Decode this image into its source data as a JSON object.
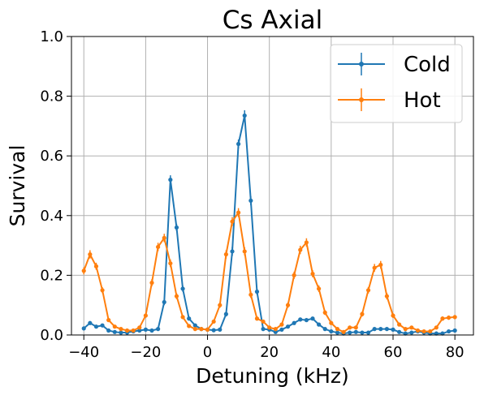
{
  "chart_data": {
    "type": "line",
    "title": "Cs Axial",
    "xlabel": "Detuning (kHz)",
    "ylabel": "Survival",
    "xlim": [
      -44,
      86
    ],
    "ylim": [
      0,
      1.0
    ],
    "xticks": [
      -40,
      -20,
      0,
      20,
      40,
      60,
      80
    ],
    "yticks": [
      0.0,
      0.2,
      0.4,
      0.6,
      0.8,
      1.0
    ],
    "xtick_labels": [
      "−40",
      "−20",
      "0",
      "20",
      "40",
      "60",
      "80"
    ],
    "ytick_labels": [
      "0.0",
      "0.2",
      "0.4",
      "0.6",
      "0.8",
      "1.0"
    ],
    "grid": true,
    "legend_position": "top-right",
    "x": [
      -40,
      -38,
      -36,
      -34,
      -32,
      -30,
      -28,
      -26,
      -24,
      -22,
      -20,
      -18,
      -16,
      -14,
      -12,
      -10,
      -8,
      -6,
      -4,
      -2,
      0,
      2,
      4,
      6,
      8,
      10,
      12,
      14,
      16,
      18,
      20,
      22,
      24,
      26,
      28,
      30,
      32,
      34,
      36,
      38,
      40,
      42,
      44,
      46,
      48,
      50,
      52,
      54,
      56,
      58,
      60,
      62,
      64,
      66,
      68,
      70,
      72,
      74,
      76,
      78,
      80
    ],
    "series": [
      {
        "name": "Cold",
        "color": "#1f77b4",
        "values": [
          0.022,
          0.04,
          0.028,
          0.032,
          0.015,
          0.01,
          0.008,
          0.008,
          0.012,
          0.015,
          0.018,
          0.015,
          0.02,
          0.11,
          0.52,
          0.36,
          0.155,
          0.055,
          0.032,
          0.02,
          0.018,
          0.016,
          0.018,
          0.07,
          0.28,
          0.64,
          0.735,
          0.45,
          0.145,
          0.02,
          0.018,
          0.01,
          0.018,
          0.028,
          0.04,
          0.052,
          0.05,
          0.055,
          0.035,
          0.02,
          0.012,
          0.008,
          0.005,
          0.008,
          0.01,
          0.008,
          0.008,
          0.02,
          0.02,
          0.02,
          0.018,
          0.01,
          0.005,
          0.008,
          0.012,
          0.008,
          0.005,
          0.005,
          0.005,
          0.012,
          0.015
        ],
        "errors": [
          0.004,
          0.005,
          0.004,
          0.004,
          0.003,
          0.003,
          0.003,
          0.003,
          0.003,
          0.003,
          0.003,
          0.003,
          0.004,
          0.01,
          0.015,
          0.012,
          0.01,
          0.006,
          0.004,
          0.003,
          0.003,
          0.003,
          0.003,
          0.008,
          0.015,
          0.015,
          0.018,
          0.015,
          0.01,
          0.003,
          0.003,
          0.003,
          0.003,
          0.004,
          0.005,
          0.005,
          0.005,
          0.005,
          0.004,
          0.003,
          0.003,
          0.003,
          0.002,
          0.003,
          0.003,
          0.003,
          0.003,
          0.003,
          0.003,
          0.003,
          0.003,
          0.003,
          0.002,
          0.003,
          0.003,
          0.003,
          0.002,
          0.002,
          0.002,
          0.003,
          0.003
        ]
      },
      {
        "name": "Hot",
        "color": "#ff7f0e",
        "values": [
          0.215,
          0.27,
          0.23,
          0.15,
          0.05,
          0.028,
          0.02,
          0.015,
          0.015,
          0.025,
          0.065,
          0.175,
          0.295,
          0.325,
          0.24,
          0.13,
          0.06,
          0.03,
          0.02,
          0.02,
          0.018,
          0.045,
          0.1,
          0.27,
          0.38,
          0.41,
          0.28,
          0.135,
          0.055,
          0.045,
          0.025,
          0.02,
          0.035,
          0.1,
          0.2,
          0.285,
          0.31,
          0.205,
          0.155,
          0.075,
          0.04,
          0.02,
          0.01,
          0.025,
          0.025,
          0.07,
          0.15,
          0.225,
          0.235,
          0.13,
          0.065,
          0.035,
          0.02,
          0.025,
          0.015,
          0.012,
          0.012,
          0.025,
          0.055,
          0.058,
          0.06
        ],
        "errors": [
          0.012,
          0.014,
          0.012,
          0.01,
          0.006,
          0.005,
          0.004,
          0.004,
          0.004,
          0.005,
          0.007,
          0.012,
          0.014,
          0.014,
          0.013,
          0.01,
          0.007,
          0.005,
          0.004,
          0.004,
          0.004,
          0.006,
          0.009,
          0.014,
          0.015,
          0.015,
          0.014,
          0.011,
          0.007,
          0.006,
          0.005,
          0.004,
          0.005,
          0.009,
          0.012,
          0.014,
          0.014,
          0.012,
          0.011,
          0.008,
          0.006,
          0.004,
          0.003,
          0.005,
          0.005,
          0.008,
          0.011,
          0.013,
          0.013,
          0.011,
          0.008,
          0.006,
          0.004,
          0.005,
          0.004,
          0.004,
          0.004,
          0.005,
          0.007,
          0.007,
          0.007
        ]
      }
    ]
  }
}
